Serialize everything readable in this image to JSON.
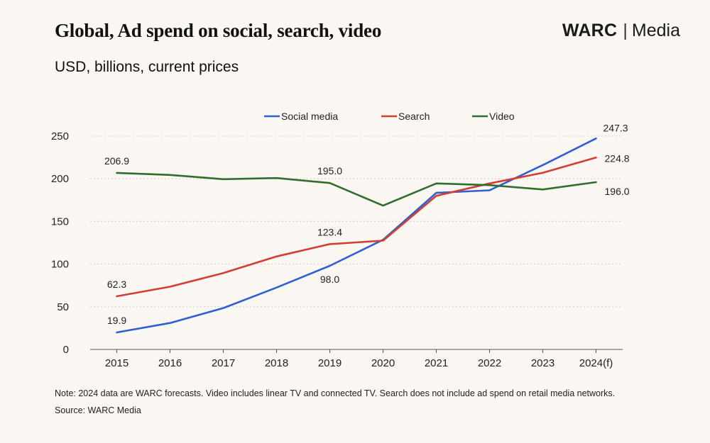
{
  "header": {
    "title": "Global, Ad spend on social, search, video",
    "subtitle": "USD, billions, current prices",
    "brand_primary": "WARC",
    "brand_separator": "|",
    "brand_secondary": "Media"
  },
  "footer": {
    "note": "Note: 2024 data are WARC forecasts. Video includes linear TV and connected TV. Search does not include ad spend on retail media networks.",
    "source": "Source: WARC Media"
  },
  "chart_data": {
    "type": "line",
    "title": "Global, Ad spend on social, search, video",
    "subtitle": "USD, billions, current prices",
    "xlabel": "",
    "ylabel": "",
    "categories": [
      "2015",
      "2016",
      "2017",
      "2018",
      "2019",
      "2020",
      "2021",
      "2022",
      "2023",
      "2024(f)"
    ],
    "ylim": [
      0,
      250
    ],
    "yticks": [
      0,
      50,
      100,
      150,
      200,
      250
    ],
    "grid": "horizontal dashed",
    "legend_position": "top-center",
    "series": [
      {
        "name": "Social media",
        "color": "#2f5fd3",
        "values": [
          19.9,
          31,
          48.5,
          72.5,
          98.0,
          128.5,
          183.5,
          186.5,
          216,
          247.3
        ]
      },
      {
        "name": "Search",
        "color": "#d23f31",
        "values": [
          62.3,
          73.5,
          89.5,
          109,
          123.4,
          127.5,
          180,
          194.5,
          207,
          224.8
        ]
      },
      {
        "name": "Video",
        "color": "#2e6e2e",
        "values": [
          206.9,
          204.5,
          199.5,
          200.8,
          195.0,
          168.5,
          194.5,
          192.5,
          187.5,
          196.0
        ]
      }
    ],
    "annotations": [
      {
        "series": 1,
        "index": 0,
        "text": "62.3",
        "pos": "above"
      },
      {
        "series": 0,
        "index": 0,
        "text": "19.9",
        "pos": "above"
      },
      {
        "series": 2,
        "index": 0,
        "text": "206.9",
        "pos": "above"
      },
      {
        "series": 2,
        "index": 4,
        "text": "195.0",
        "pos": "above"
      },
      {
        "series": 1,
        "index": 4,
        "text": "123.4",
        "pos": "above"
      },
      {
        "series": 0,
        "index": 4,
        "text": "98.0",
        "pos": "below"
      },
      {
        "series": 0,
        "index": 9,
        "text": "247.3",
        "pos": "right-above"
      },
      {
        "series": 1,
        "index": 9,
        "text": "224.8",
        "pos": "right"
      },
      {
        "series": 2,
        "index": 9,
        "text": "196.0",
        "pos": "right-below"
      }
    ]
  }
}
